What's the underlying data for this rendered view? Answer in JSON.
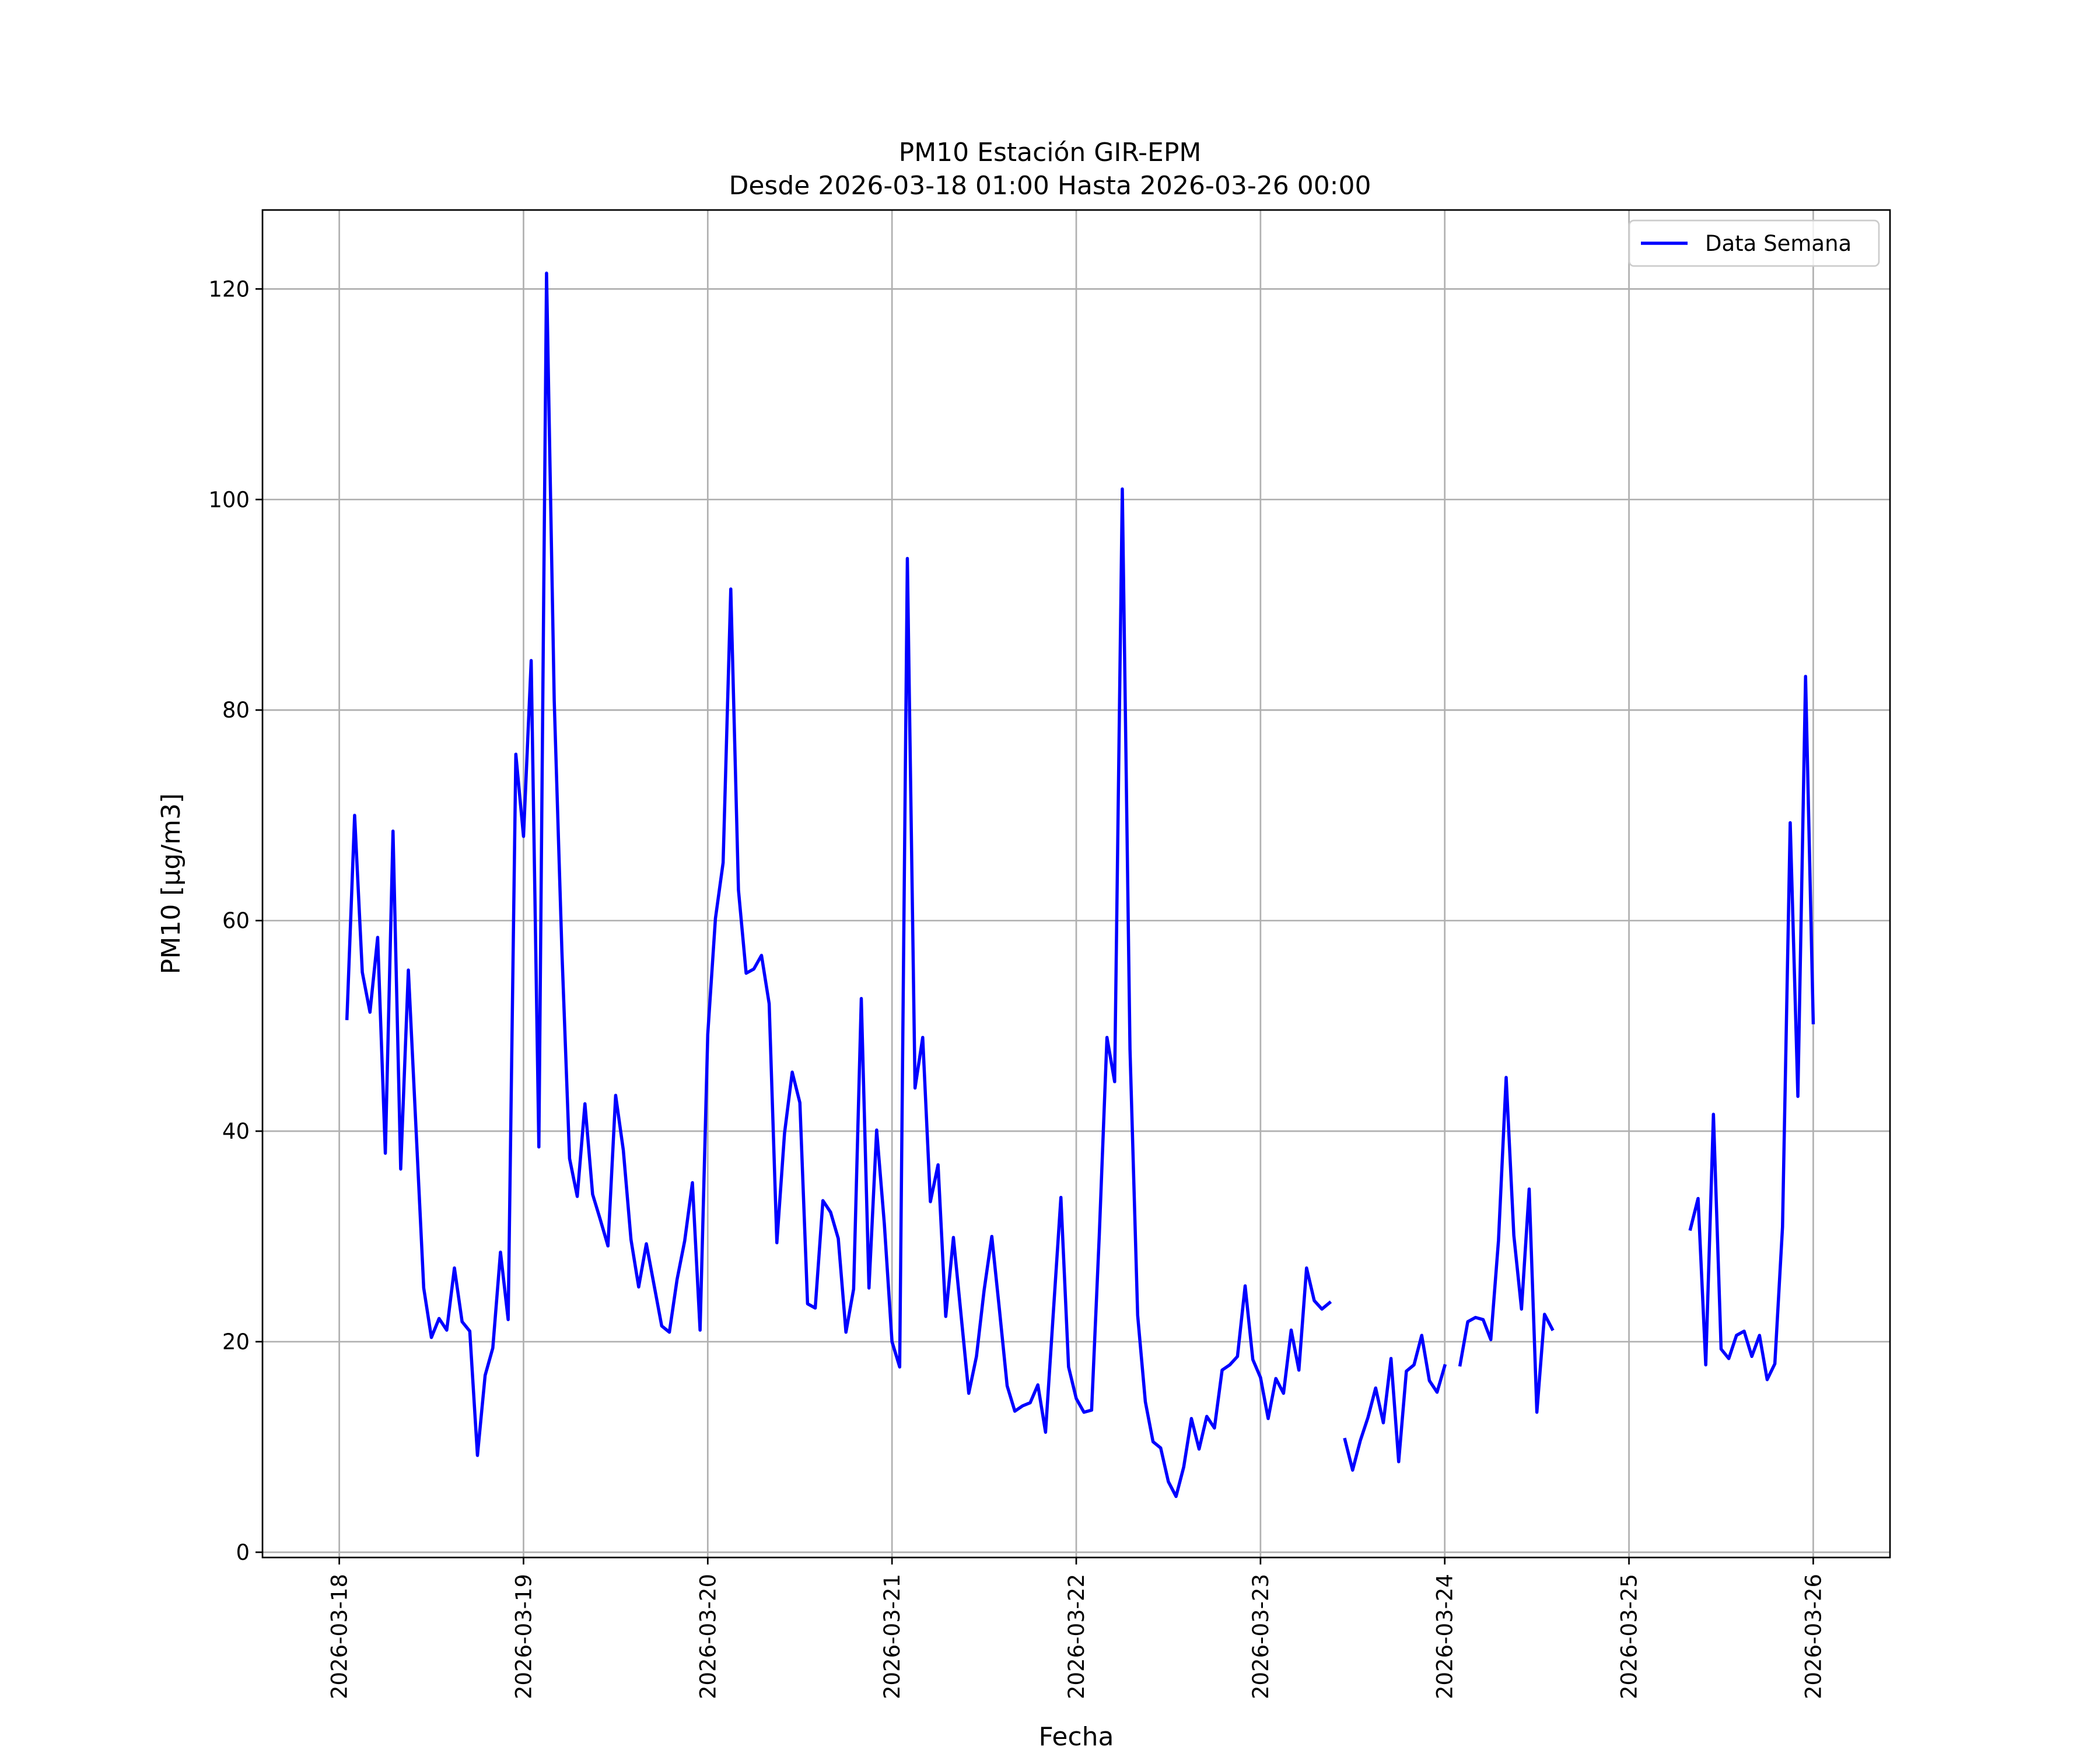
{
  "chart_data": {
    "type": "line",
    "title": "PM10 Estación GIR-EPM",
    "subtitle": "Desde 2026-03-18 01:00 Hasta 2026-03-26 00:00",
    "xlabel": "Fecha",
    "ylabel": "PM10 [μg/m3]",
    "xlim": [
      "2026-03-17 14:00",
      "2026-03-26 10:00"
    ],
    "ylim": [
      -0.5,
      127.5
    ],
    "x_ticks": [
      "2026-03-18",
      "2026-03-19",
      "2026-03-20",
      "2026-03-21",
      "2026-03-22",
      "2026-03-23",
      "2026-03-24",
      "2026-03-25",
      "2026-03-26"
    ],
    "y_ticks": [
      0,
      20,
      40,
      60,
      80,
      100,
      120
    ],
    "grid": true,
    "legend": "top-right",
    "colors": {
      "series": "#0000ff",
      "grid": "#b0b0b0"
    },
    "series": [
      {
        "name": "Data Semana",
        "color": "#0000ff",
        "points": [
          [
            "2026-03-18 01:00",
            50.7
          ],
          [
            "2026-03-18 02:00",
            70.0
          ],
          [
            "2026-03-18 03:00",
            55.1
          ],
          [
            "2026-03-18 04:00",
            51.3
          ],
          [
            "2026-03-18 05:00",
            58.4
          ],
          [
            "2026-03-18 06:00",
            37.9
          ],
          [
            "2026-03-18 07:00",
            68.5
          ],
          [
            "2026-03-18 08:00",
            36.4
          ],
          [
            "2026-03-18 09:00",
            55.3
          ],
          [
            "2026-03-18 10:00",
            40.2
          ],
          [
            "2026-03-18 11:00",
            25.1
          ],
          [
            "2026-03-18 12:00",
            20.4
          ],
          [
            "2026-03-18 13:00",
            22.2
          ],
          [
            "2026-03-18 14:00",
            21.1
          ],
          [
            "2026-03-18 15:00",
            27.0
          ],
          [
            "2026-03-18 16:00",
            21.9
          ],
          [
            "2026-03-18 17:00",
            21.0
          ],
          [
            "2026-03-18 18:00",
            9.2
          ],
          [
            "2026-03-18 19:00",
            16.8
          ],
          [
            "2026-03-18 20:00",
            19.4
          ],
          [
            "2026-03-18 21:00",
            28.5
          ],
          [
            "2026-03-18 22:00",
            22.1
          ],
          [
            "2026-03-18 23:00",
            75.8
          ],
          [
            "2026-03-19 00:00",
            68.0
          ],
          [
            "2026-03-19 01:00",
            84.7
          ],
          [
            "2026-03-19 02:00",
            38.5
          ],
          [
            "2026-03-19 03:00",
            121.5
          ],
          [
            "2026-03-19 04:00",
            80.9
          ],
          [
            "2026-03-19 05:00",
            57.1
          ],
          [
            "2026-03-19 06:00",
            37.4
          ],
          [
            "2026-03-19 07:00",
            33.8
          ],
          [
            "2026-03-19 08:00",
            42.6
          ],
          [
            "2026-03-19 09:00",
            34.0
          ],
          [
            "2026-03-19 10:00",
            31.6
          ],
          [
            "2026-03-19 11:00",
            29.1
          ],
          [
            "2026-03-19 12:00",
            43.4
          ],
          [
            "2026-03-19 13:00",
            38.2
          ],
          [
            "2026-03-19 14:00",
            29.7
          ],
          [
            "2026-03-19 15:00",
            25.2
          ],
          [
            "2026-03-19 16:00",
            29.3
          ],
          [
            "2026-03-19 17:00",
            25.4
          ],
          [
            "2026-03-19 18:00",
            21.5
          ],
          [
            "2026-03-19 19:00",
            20.9
          ],
          [
            "2026-03-19 20:00",
            25.9
          ],
          [
            "2026-03-19 21:00",
            29.6
          ],
          [
            "2026-03-19 22:00",
            35.1
          ],
          [
            "2026-03-19 23:00",
            21.1
          ],
          [
            "2026-03-20 00:00",
            49.2
          ],
          [
            "2026-03-20 01:00",
            60.2
          ],
          [
            "2026-03-20 02:00",
            65.5
          ],
          [
            "2026-03-20 03:00",
            91.5
          ],
          [
            "2026-03-20 04:00",
            62.9
          ],
          [
            "2026-03-20 05:00",
            55.0
          ],
          [
            "2026-03-20 06:00",
            55.4
          ],
          [
            "2026-03-20 07:00",
            56.7
          ],
          [
            "2026-03-20 08:00",
            52.1
          ],
          [
            "2026-03-20 09:00",
            29.4
          ],
          [
            "2026-03-20 10:00",
            39.8
          ],
          [
            "2026-03-20 11:00",
            45.6
          ],
          [
            "2026-03-20 12:00",
            42.7
          ],
          [
            "2026-03-20 13:00",
            23.6
          ],
          [
            "2026-03-20 14:00",
            23.2
          ],
          [
            "2026-03-20 15:00",
            33.4
          ],
          [
            "2026-03-20 16:00",
            32.3
          ],
          [
            "2026-03-20 17:00",
            29.8
          ],
          [
            "2026-03-20 18:00",
            20.9
          ],
          [
            "2026-03-20 19:00",
            25.0
          ],
          [
            "2026-03-20 20:00",
            52.6
          ],
          [
            "2026-03-20 21:00",
            25.1
          ],
          [
            "2026-03-20 22:00",
            40.1
          ],
          [
            "2026-03-20 23:00",
            31.2
          ],
          [
            "2026-03-21 00:00",
            20.0
          ],
          [
            "2026-03-21 01:00",
            17.6
          ],
          [
            "2026-03-21 02:00",
            94.4
          ],
          [
            "2026-03-21 03:00",
            44.1
          ],
          [
            "2026-03-21 04:00",
            48.9
          ],
          [
            "2026-03-21 05:00",
            33.3
          ],
          [
            "2026-03-21 06:00",
            36.8
          ],
          [
            "2026-03-21 07:00",
            22.4
          ],
          [
            "2026-03-21 08:00",
            29.9
          ],
          [
            "2026-03-21 09:00",
            22.5
          ],
          [
            "2026-03-21 10:00",
            15.1
          ],
          [
            "2026-03-21 11:00",
            18.6
          ],
          [
            "2026-03-21 12:00",
            24.9
          ],
          [
            "2026-03-21 13:00",
            30.0
          ],
          [
            "2026-03-21 14:00",
            23.0
          ],
          [
            "2026-03-21 15:00",
            15.8
          ],
          [
            "2026-03-21 16:00",
            13.4
          ],
          [
            "2026-03-21 17:00",
            13.9
          ],
          [
            "2026-03-21 18:00",
            14.2
          ],
          [
            "2026-03-21 19:00",
            15.9
          ],
          [
            "2026-03-21 20:00",
            11.4
          ],
          [
            "2026-03-21 21:00",
            22.6
          ],
          [
            "2026-03-21 22:00",
            33.7
          ],
          [
            "2026-03-21 23:00",
            17.6
          ],
          [
            "2026-03-22 00:00",
            14.6
          ],
          [
            "2026-03-22 01:00",
            13.3
          ],
          [
            "2026-03-22 02:00",
            13.5
          ],
          [
            "2026-03-22 03:00",
            30.1
          ],
          [
            "2026-03-22 04:00",
            48.9
          ],
          [
            "2026-03-22 05:00",
            44.7
          ],
          [
            "2026-03-22 06:00",
            101.0
          ],
          [
            "2026-03-22 07:00",
            47.8
          ],
          [
            "2026-03-22 08:00",
            22.5
          ],
          [
            "2026-03-22 09:00",
            14.3
          ],
          [
            "2026-03-22 10:00",
            10.5
          ],
          [
            "2026-03-22 11:00",
            9.9
          ],
          [
            "2026-03-22 12:00",
            6.7
          ],
          [
            "2026-03-22 13:00",
            5.3
          ],
          [
            "2026-03-22 14:00",
            8.1
          ],
          [
            "2026-03-22 15:00",
            12.7
          ],
          [
            "2026-03-22 16:00",
            9.8
          ],
          [
            "2026-03-22 17:00",
            12.9
          ],
          [
            "2026-03-22 18:00",
            11.8
          ],
          [
            "2026-03-22 19:00",
            17.3
          ],
          [
            "2026-03-22 20:00",
            17.8
          ],
          [
            "2026-03-22 21:00",
            18.6
          ],
          [
            "2026-03-22 22:00",
            25.3
          ],
          [
            "2026-03-22 23:00",
            18.3
          ],
          [
            "2026-03-23 00:00",
            16.6
          ],
          [
            "2026-03-23 01:00",
            12.7
          ],
          [
            "2026-03-23 02:00",
            16.5
          ],
          [
            "2026-03-23 03:00",
            15.1
          ],
          [
            "2026-03-23 04:00",
            21.1
          ],
          [
            "2026-03-23 05:00",
            17.3
          ],
          [
            "2026-03-23 06:00",
            27.0
          ],
          [
            "2026-03-23 07:00",
            23.9
          ],
          [
            "2026-03-23 08:00",
            23.1
          ],
          [
            "2026-03-23 09:00",
            23.7
          ],
          [
            "2026-03-23 10:00",
            null
          ],
          [
            "2026-03-23 11:00",
            10.7
          ],
          [
            "2026-03-23 12:00",
            7.8
          ],
          [
            "2026-03-23 13:00",
            10.6
          ],
          [
            "2026-03-23 14:00",
            12.8
          ],
          [
            "2026-03-23 15:00",
            15.6
          ],
          [
            "2026-03-23 16:00",
            12.3
          ],
          [
            "2026-03-23 17:00",
            18.4
          ],
          [
            "2026-03-23 18:00",
            8.6
          ],
          [
            "2026-03-23 19:00",
            17.2
          ],
          [
            "2026-03-23 20:00",
            17.8
          ],
          [
            "2026-03-23 21:00",
            20.6
          ],
          [
            "2026-03-23 22:00",
            16.3
          ],
          [
            "2026-03-23 23:00",
            15.2
          ],
          [
            "2026-03-24 00:00",
            17.7
          ],
          [
            "2026-03-24 01:00",
            null
          ],
          [
            "2026-03-24 02:00",
            17.8
          ],
          [
            "2026-03-24 03:00",
            21.9
          ],
          [
            "2026-03-24 04:00",
            22.3
          ],
          [
            "2026-03-24 05:00",
            22.1
          ],
          [
            "2026-03-24 06:00",
            20.2
          ],
          [
            "2026-03-24 07:00",
            29.6
          ],
          [
            "2026-03-24 08:00",
            45.1
          ],
          [
            "2026-03-24 09:00",
            30.1
          ],
          [
            "2026-03-24 10:00",
            23.1
          ],
          [
            "2026-03-24 11:00",
            34.5
          ],
          [
            "2026-03-24 12:00",
            13.3
          ],
          [
            "2026-03-24 13:00",
            22.6
          ],
          [
            "2026-03-24 14:00",
            21.2
          ],
          [
            "2026-03-24 15:00",
            null
          ],
          [
            "2026-03-25 07:00",
            null
          ],
          [
            "2026-03-25 08:00",
            30.7
          ],
          [
            "2026-03-25 09:00",
            33.6
          ],
          [
            "2026-03-25 10:00",
            17.8
          ],
          [
            "2026-03-25 11:00",
            41.6
          ],
          [
            "2026-03-25 12:00",
            19.3
          ],
          [
            "2026-03-25 13:00",
            18.4
          ],
          [
            "2026-03-25 14:00",
            20.6
          ],
          [
            "2026-03-25 15:00",
            21.0
          ],
          [
            "2026-03-25 16:00",
            18.6
          ],
          [
            "2026-03-25 17:00",
            20.6
          ],
          [
            "2026-03-25 18:00",
            16.4
          ],
          [
            "2026-03-25 19:00",
            17.9
          ],
          [
            "2026-03-25 20:00",
            30.9
          ],
          [
            "2026-03-25 21:00",
            69.3
          ],
          [
            "2026-03-25 22:00",
            43.3
          ],
          [
            "2026-03-25 23:00",
            83.2
          ],
          [
            "2026-03-26 00:00",
            50.3
          ]
        ]
      }
    ]
  }
}
